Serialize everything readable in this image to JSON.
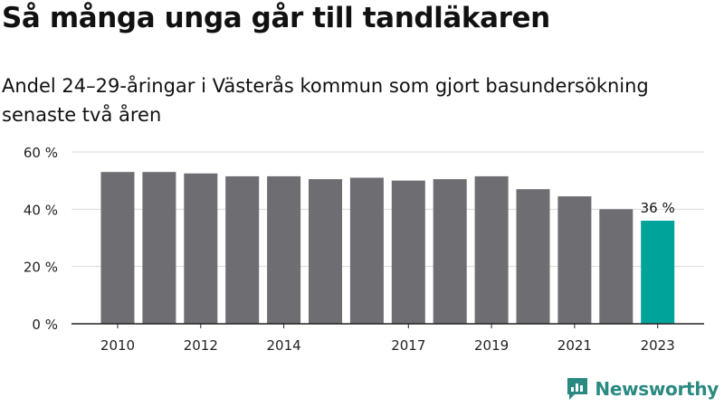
{
  "title": "Så många unga går till tandläkaren",
  "subtitle": "Andel 24–29-åringar i Västerås kommun som gjort basundersökning senaste två åren",
  "chart_data": {
    "type": "bar",
    "categories": [
      "2010",
      "2011",
      "2012",
      "2013",
      "2014",
      "2015",
      "2016",
      "2017",
      "2018",
      "2019",
      "2020",
      "2021",
      "2022",
      "2023"
    ],
    "values": [
      53,
      53,
      52.5,
      51.5,
      51.5,
      50.5,
      51,
      50,
      50.5,
      51.5,
      47,
      44.5,
      40,
      36
    ],
    "tick_labels_x": [
      "2010",
      "2012",
      "2014",
      "2017",
      "2019",
      "2021",
      "2023"
    ],
    "y_ticks": [
      0,
      20,
      40,
      60
    ],
    "y_tick_labels": [
      "0 %",
      "20 %",
      "40 %",
      "60 %"
    ],
    "ylim": [
      0,
      60
    ],
    "grid": true,
    "bar_color": "#6e6d72",
    "highlight_color": "#00a39a",
    "highlight_category": "2023",
    "annotation": "36 %"
  },
  "brand": {
    "name": "Newsworthy",
    "color": "#2a8a82"
  }
}
